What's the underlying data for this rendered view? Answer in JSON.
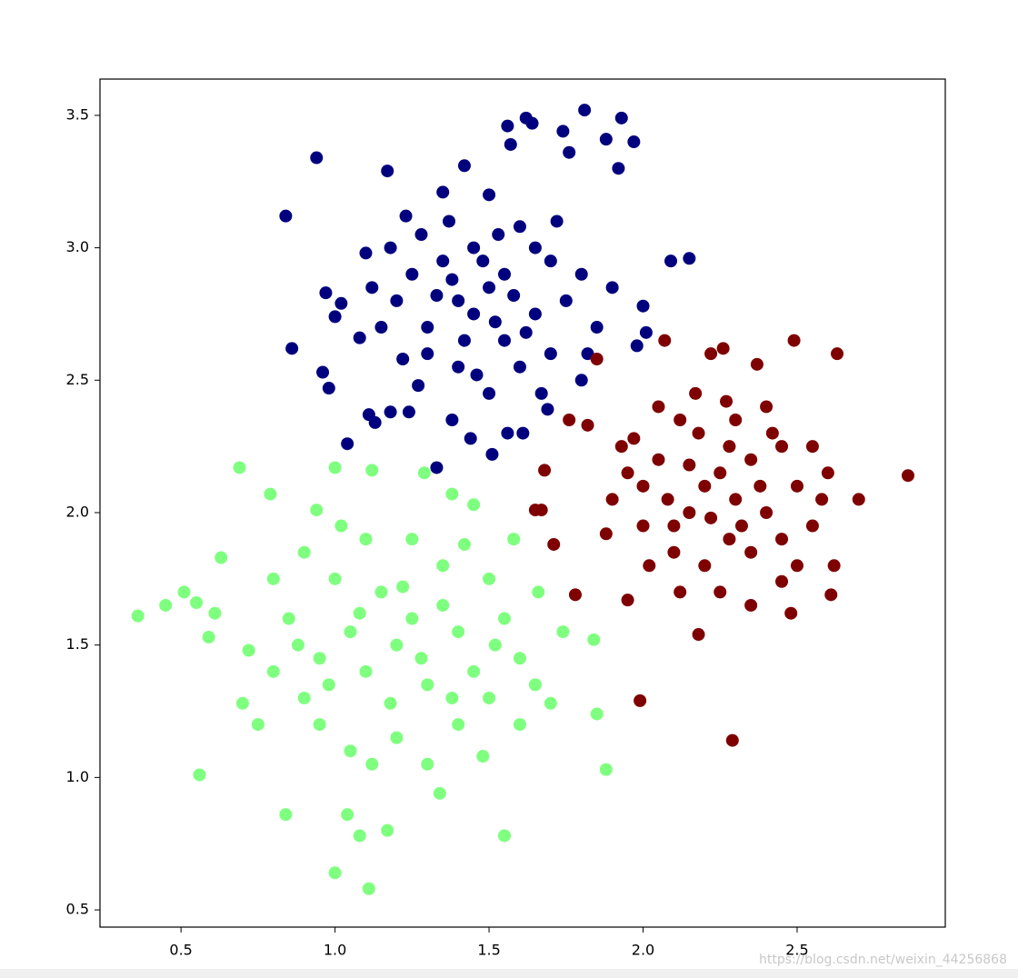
{
  "chart_data": {
    "type": "scatter",
    "xlim": [
      0.237,
      2.981
    ],
    "ylim": [
      0.435,
      3.637
    ],
    "xticks": [
      0.5,
      {
        "value": 1,
        "label": "1.0"
      },
      1.5,
      {
        "value": 2,
        "label": "2.0"
      },
      2.5
    ],
    "yticks": [
      0.5,
      {
        "value": 1,
        "label": "1.0"
      },
      1.5,
      {
        "value": 2,
        "label": "2.0"
      },
      2.5,
      {
        "value": 3,
        "label": "3.0"
      },
      3.5
    ],
    "grid": false,
    "watermark": "https://blog.csdn.net/weixin_44256868",
    "series": [
      {
        "color": "#00007f",
        "x": [
          0.84,
          0.94,
          0.86,
          0.96,
          0.98,
          0.97,
          1.04,
          1.13,
          1.11,
          1.18,
          1.17,
          1.33,
          1.44,
          1.51,
          1.56,
          1.57,
          1.62,
          1.64,
          1.74,
          1.76,
          1.81,
          1.88,
          1.92,
          1.93,
          1.97,
          2.09,
          2.15,
          2.0,
          2.01,
          1.98,
          1.8,
          1.69,
          1.61,
          1.56,
          1.38,
          1.24,
          1.02,
          1.0,
          1.08,
          1.1,
          1.23,
          1.35,
          1.42,
          1.5,
          1.6,
          1.7,
          1.8,
          1.9,
          1.4,
          1.45,
          1.5,
          1.55,
          1.3,
          1.25,
          1.35,
          1.45,
          1.55,
          1.65,
          1.6,
          1.4,
          1.3,
          1.2,
          1.15,
          1.5,
          1.7,
          1.75,
          1.85,
          1.65,
          1.48,
          1.38,
          1.28,
          1.52,
          1.58,
          1.42,
          1.33,
          1.62,
          1.46,
          1.22,
          1.18,
          1.72,
          1.82,
          1.67,
          1.53,
          1.37,
          1.27,
          1.12
        ],
        "y": [
          3.12,
          3.34,
          2.62,
          2.53,
          2.47,
          2.83,
          2.26,
          2.34,
          2.37,
          2.38,
          3.29,
          2.17,
          2.28,
          2.22,
          3.46,
          3.39,
          3.49,
          3.47,
          3.44,
          3.36,
          3.52,
          3.41,
          3.3,
          3.49,
          3.4,
          2.95,
          2.96,
          2.78,
          2.68,
          2.63,
          2.5,
          2.39,
          2.3,
          2.3,
          2.35,
          2.38,
          2.79,
          2.74,
          2.66,
          2.98,
          3.12,
          3.21,
          3.31,
          3.2,
          3.08,
          2.95,
          2.9,
          2.85,
          2.8,
          2.75,
          2.85,
          2.9,
          2.7,
          2.9,
          2.95,
          3.0,
          2.65,
          2.75,
          2.55,
          2.55,
          2.6,
          2.8,
          2.7,
          2.45,
          2.6,
          2.8,
          2.7,
          3.0,
          2.95,
          2.88,
          3.05,
          2.72,
          2.82,
          2.65,
          2.82,
          2.68,
          2.52,
          2.58,
          3.0,
          3.1,
          2.6,
          2.45,
          3.05,
          3.1,
          2.48,
          2.85
        ]
      },
      {
        "color": "#7f0000",
        "x": [
          1.85,
          1.82,
          1.76,
          1.68,
          1.67,
          1.65,
          1.71,
          1.78,
          1.95,
          1.99,
          2.29,
          2.18,
          2.86,
          2.7,
          2.63,
          2.49,
          2.26,
          2.22,
          2.07,
          2.37,
          2.61,
          2.48,
          2.45,
          2.35,
          2.62,
          2.2,
          2.25,
          2.3,
          2.15,
          2.1,
          2.05,
          2.0,
          2.35,
          2.4,
          2.45,
          2.5,
          2.55,
          2.28,
          2.18,
          2.12,
          2.3,
          2.4,
          2.2,
          2.1,
          2.0,
          1.95,
          1.9,
          2.25,
          2.35,
          2.45,
          2.55,
          2.6,
          2.05,
          1.97,
          2.15,
          2.28,
          2.38,
          2.22,
          2.08,
          2.32,
          1.88,
          2.02,
          2.12,
          2.42,
          2.5,
          2.58,
          1.93,
          2.17,
          2.27
        ],
        "y": [
          2.58,
          2.33,
          2.35,
          2.16,
          2.01,
          2.01,
          1.88,
          1.69,
          1.67,
          1.29,
          1.14,
          1.54,
          2.14,
          2.05,
          2.6,
          2.65,
          2.62,
          2.6,
          2.65,
          2.56,
          1.69,
          1.62,
          1.74,
          1.65,
          1.8,
          2.1,
          2.15,
          2.05,
          2.0,
          1.95,
          2.2,
          2.1,
          2.2,
          2.0,
          2.25,
          2.1,
          1.95,
          1.9,
          2.3,
          2.35,
          2.35,
          2.4,
          1.8,
          1.85,
          1.95,
          2.15,
          2.05,
          1.7,
          1.85,
          1.9,
          2.25,
          2.15,
          2.4,
          2.28,
          2.18,
          2.25,
          2.1,
          1.98,
          2.05,
          1.95,
          1.92,
          1.8,
          1.7,
          2.3,
          1.8,
          2.05,
          2.25,
          2.45,
          2.42
        ]
      },
      {
        "color": "#7fff7f",
        "x": [
          0.36,
          0.45,
          0.51,
          0.56,
          0.55,
          0.59,
          0.61,
          0.63,
          0.69,
          0.84,
          1.0,
          1.11,
          1.08,
          1.17,
          1.04,
          1.55,
          1.34,
          1.88,
          1.85,
          1.84,
          1.74,
          1.29,
          1.12,
          1.0,
          0.79,
          0.94,
          1.45,
          1.38,
          1.66,
          1.2,
          1.25,
          1.1,
          1.3,
          1.15,
          1.05,
          0.95,
          0.9,
          1.35,
          1.4,
          1.45,
          1.5,
          1.55,
          1.6,
          1.5,
          1.0,
          0.85,
          0.8,
          0.75,
          0.95,
          1.05,
          1.2,
          1.3,
          1.4,
          1.6,
          1.65,
          1.25,
          1.1,
          0.9,
          0.8,
          1.35,
          1.18,
          1.28,
          1.08,
          0.98,
          1.42,
          1.52,
          1.7,
          0.72,
          0.7,
          1.22,
          1.12,
          1.48,
          1.58,
          1.02,
          0.88,
          1.38
        ],
        "y": [
          1.61,
          1.65,
          1.7,
          1.01,
          1.66,
          1.53,
          1.62,
          1.83,
          2.17,
          0.86,
          0.64,
          0.58,
          0.78,
          0.8,
          0.86,
          0.78,
          0.94,
          1.03,
          1.24,
          1.52,
          1.55,
          2.15,
          2.16,
          2.17,
          2.07,
          2.01,
          2.03,
          2.07,
          1.7,
          1.5,
          1.6,
          1.4,
          1.35,
          1.7,
          1.55,
          1.45,
          1.3,
          1.8,
          1.55,
          1.4,
          1.3,
          1.6,
          1.45,
          1.75,
          1.75,
          1.6,
          1.4,
          1.2,
          1.2,
          1.1,
          1.15,
          1.05,
          1.2,
          1.2,
          1.35,
          1.9,
          1.9,
          1.85,
          1.75,
          1.65,
          1.28,
          1.45,
          1.62,
          1.35,
          1.88,
          1.5,
          1.28,
          1.48,
          1.28,
          1.72,
          1.05,
          1.08,
          1.9,
          1.95,
          1.5,
          1.3
        ]
      }
    ]
  }
}
